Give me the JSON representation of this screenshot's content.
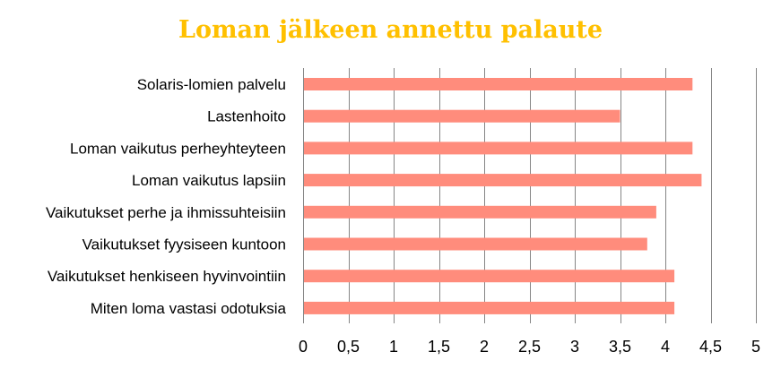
{
  "chart_data": {
    "type": "bar",
    "orientation": "horizontal",
    "title": "Loman jälkeen annettu palaute",
    "title_color": "#FFC000",
    "categories": [
      "Solaris-lomien palvelu",
      "Lastenhoito",
      "Loman vaikutus perheyhteyteen",
      "Loman vaikutus lapsiin",
      "Vaikutukset perhe ja ihmissuhteisiin",
      "Vaikutukset fyysiseen kuntoon",
      "Vaikutukset henkiseen hyvinvointiin",
      "Miten loma vastasi odotuksia"
    ],
    "values": [
      4.3,
      3.5,
      4.3,
      4.4,
      3.9,
      3.8,
      4.1,
      4.1
    ],
    "xlim": [
      0,
      5
    ],
    "xticks": [
      0,
      0.5,
      1,
      1.5,
      2,
      2.5,
      3,
      3.5,
      4,
      4.5,
      5
    ],
    "xtick_labels": [
      "0",
      "0,5",
      "1",
      "1,5",
      "2",
      "2,5",
      "3",
      "3,5",
      "4",
      "4,5",
      "5"
    ],
    "bar_color": "#FF8C7C",
    "gridlines": "vertical",
    "grid_color": "#868686",
    "legend": "none"
  }
}
